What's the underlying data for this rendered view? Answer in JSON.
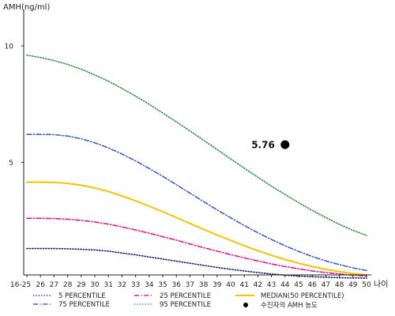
{
  "chart_data": {
    "type": "line",
    "ylabel": "AMH(ng/ml)",
    "xlabel": "나이",
    "ylim": [
      0,
      11
    ],
    "y_ticks": [
      "5",
      "10"
    ],
    "y_tick_values": [
      5,
      10
    ],
    "categories": [
      "16-25",
      "26",
      "27",
      "28",
      "29",
      "30",
      "31",
      "32",
      "33",
      "34",
      "35",
      "36",
      "37",
      "38",
      "39",
      "40",
      "41",
      "42",
      "43",
      "44",
      "45",
      "46",
      "47",
      "48",
      "49",
      "50"
    ],
    "series": [
      {
        "name": "5 PERCENTILE",
        "color": "#1a1a6e",
        "style": "dotted",
        "values": [
          1.3,
          1.3,
          1.3,
          1.29,
          1.27,
          1.24,
          1.19,
          1.11,
          1.03,
          0.94,
          0.85,
          0.76,
          0.67,
          0.58,
          0.49,
          0.41,
          0.34,
          0.27,
          0.21,
          0.16,
          0.12,
          0.09,
          0.07,
          0.05,
          0.04,
          0.03
        ]
      },
      {
        "name": "25 PERCENTILE",
        "color": "#e0188c",
        "style": "dashdot",
        "values": [
          2.6,
          2.6,
          2.59,
          2.56,
          2.51,
          2.44,
          2.35,
          2.23,
          2.1,
          1.96,
          1.81,
          1.66,
          1.5,
          1.34,
          1.19,
          1.04,
          0.9,
          0.77,
          0.64,
          0.53,
          0.43,
          0.34,
          0.27,
          0.21,
          0.16,
          0.12
        ]
      },
      {
        "name": "MEDIAN(50 PERCENTILE)",
        "color": "#f2c400",
        "style": "solid",
        "values": [
          4.15,
          4.15,
          4.14,
          4.1,
          4.02,
          3.9,
          3.75,
          3.56,
          3.35,
          3.12,
          2.88,
          2.63,
          2.38,
          2.13,
          1.88,
          1.65,
          1.42,
          1.21,
          1.01,
          0.83,
          0.67,
          0.53,
          0.41,
          0.31,
          0.23,
          0.17
        ]
      },
      {
        "name": "75 PERCENTILE",
        "color": "#3f5fbf",
        "style": "dashdot",
        "values": [
          6.2,
          6.2,
          6.19,
          6.13,
          6.01,
          5.84,
          5.62,
          5.36,
          5.06,
          4.74,
          4.4,
          4.04,
          3.68,
          3.32,
          2.96,
          2.62,
          2.29,
          1.98,
          1.69,
          1.42,
          1.18,
          0.96,
          0.77,
          0.61,
          0.47,
          0.36
        ]
      },
      {
        "name": "95 PERCENTILE",
        "color": "#2e8b57",
        "style": "dotted",
        "values": [
          9.6,
          9.5,
          9.37,
          9.2,
          9.0,
          8.75,
          8.48,
          8.17,
          7.84,
          7.49,
          7.12,
          6.74,
          6.35,
          5.95,
          5.55,
          5.15,
          4.75,
          4.36,
          3.98,
          3.62,
          3.27,
          2.94,
          2.63,
          2.34,
          2.08,
          1.86
        ]
      }
    ],
    "patient": {
      "name": "수진자의 AMH 농도",
      "x": "44",
      "value": 5.76,
      "label": "5.76",
      "color": "#000000"
    },
    "legend_placement": "bottom",
    "grid": false
  }
}
